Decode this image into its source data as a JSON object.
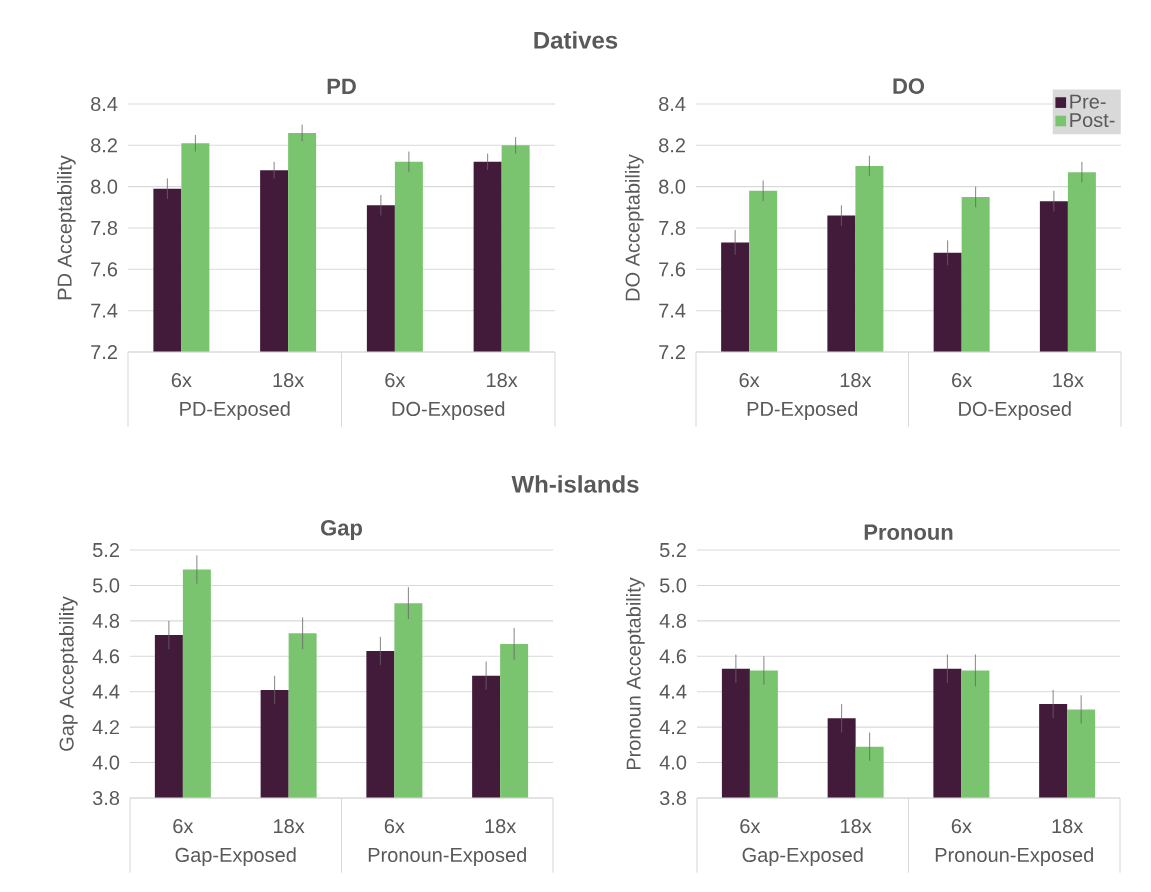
{
  "chart_data": [
    {
      "type": "bar",
      "title": "PD",
      "ylabel": "PD Acceptability",
      "categories": [
        "6x",
        "18x",
        "6x",
        "18x"
      ],
      "annotations": [
        "Datives",
        "PD-Exposed",
        "DO-Exposed"
      ],
      "series": [
        {
          "color": "#421a3a",
          "values": [
            7.99,
            8.08,
            7.91,
            8.12
          ],
          "errors": [
            0.05,
            0.04,
            0.05,
            0.04
          ]
        },
        {
          "color": "#7bc46f",
          "values": [
            8.21,
            8.26,
            8.12,
            8.2
          ],
          "errors": [
            0.04,
            0.04,
            0.05,
            0.04
          ]
        }
      ],
      "ylim": [
        7.2,
        8.4
      ],
      "yticks": [
        7.2,
        7.4,
        7.6,
        7.8,
        {
          "value": 8,
          "label": "8.0"
        },
        8.2,
        8.4
      ],
      "grid": "y"
    },
    {
      "type": "bar",
      "title": "DO",
      "ylabel": "DO Acceptability",
      "categories": [
        "6x",
        "18x",
        "6x",
        "18x"
      ],
      "annotations": [
        "PD-Exposed",
        "DO-Exposed"
      ],
      "series": [
        {
          "name": "Pre-",
          "color": "#421a3a",
          "values": [
            7.73,
            7.86,
            7.68,
            7.93
          ],
          "errors": [
            0.06,
            0.05,
            0.06,
            0.05
          ]
        },
        {
          "name": "Post-",
          "color": "#7bc46f",
          "values": [
            7.98,
            8.1,
            7.95,
            8.07
          ],
          "errors": [
            0.05,
            0.05,
            0.05,
            0.05
          ]
        }
      ],
      "ylim": [
        7.2,
        8.4
      ],
      "yticks": [
        7.2,
        7.4,
        7.6,
        7.8,
        {
          "value": 8,
          "label": "8.0"
        },
        8.2,
        8.4
      ],
      "grid": "y",
      "legend": "top right"
    },
    {
      "type": "bar",
      "title": "Gap",
      "ylabel": "Gap Acceptability",
      "categories": [
        "6x",
        "18x",
        "6x",
        "18x"
      ],
      "annotations": [
        "Wh-islands",
        "Gap-Exposed",
        "Pronoun-Exposed"
      ],
      "series": [
        {
          "color": "#421a3a",
          "values": [
            4.72,
            4.41,
            4.63,
            4.49
          ],
          "errors": [
            0.08,
            0.08,
            0.08,
            0.08
          ]
        },
        {
          "color": "#7bc46f",
          "values": [
            5.09,
            4.73,
            4.9,
            4.67
          ],
          "errors": [
            0.08,
            0.09,
            0.09,
            0.09
          ]
        }
      ],
      "ylim": [
        3.8,
        5.2
      ],
      "yticks": [
        3.8,
        {
          "value": 4,
          "label": "4.0"
        },
        4.2,
        4.4,
        4.6,
        4.8,
        {
          "value": 5,
          "label": "5.0"
        },
        5.2
      ],
      "grid": "y"
    },
    {
      "type": "bar",
      "title": "Pronoun",
      "ylabel": "Pronoun Acceptability",
      "categories": [
        "6x",
        "18x",
        "6x",
        "18x"
      ],
      "annotations": [
        "Gap-Exposed",
        "Pronoun-Exposed"
      ],
      "series": [
        {
          "color": "#421a3a",
          "values": [
            4.53,
            4.25,
            4.53,
            4.33
          ],
          "errors": [
            0.08,
            0.08,
            0.08,
            0.08
          ]
        },
        {
          "color": "#7bc46f",
          "values": [
            4.52,
            4.09,
            4.52,
            4.3
          ],
          "errors": [
            0.08,
            0.08,
            0.09,
            0.08
          ]
        }
      ],
      "ylim": [
        3.8,
        5.2
      ],
      "yticks": [
        3.8,
        {
          "value": 4,
          "label": "4.0"
        },
        4.2,
        4.4,
        4.6,
        4.8,
        {
          "value": 5,
          "label": "5.0"
        },
        5.2
      ],
      "grid": "y"
    }
  ]
}
